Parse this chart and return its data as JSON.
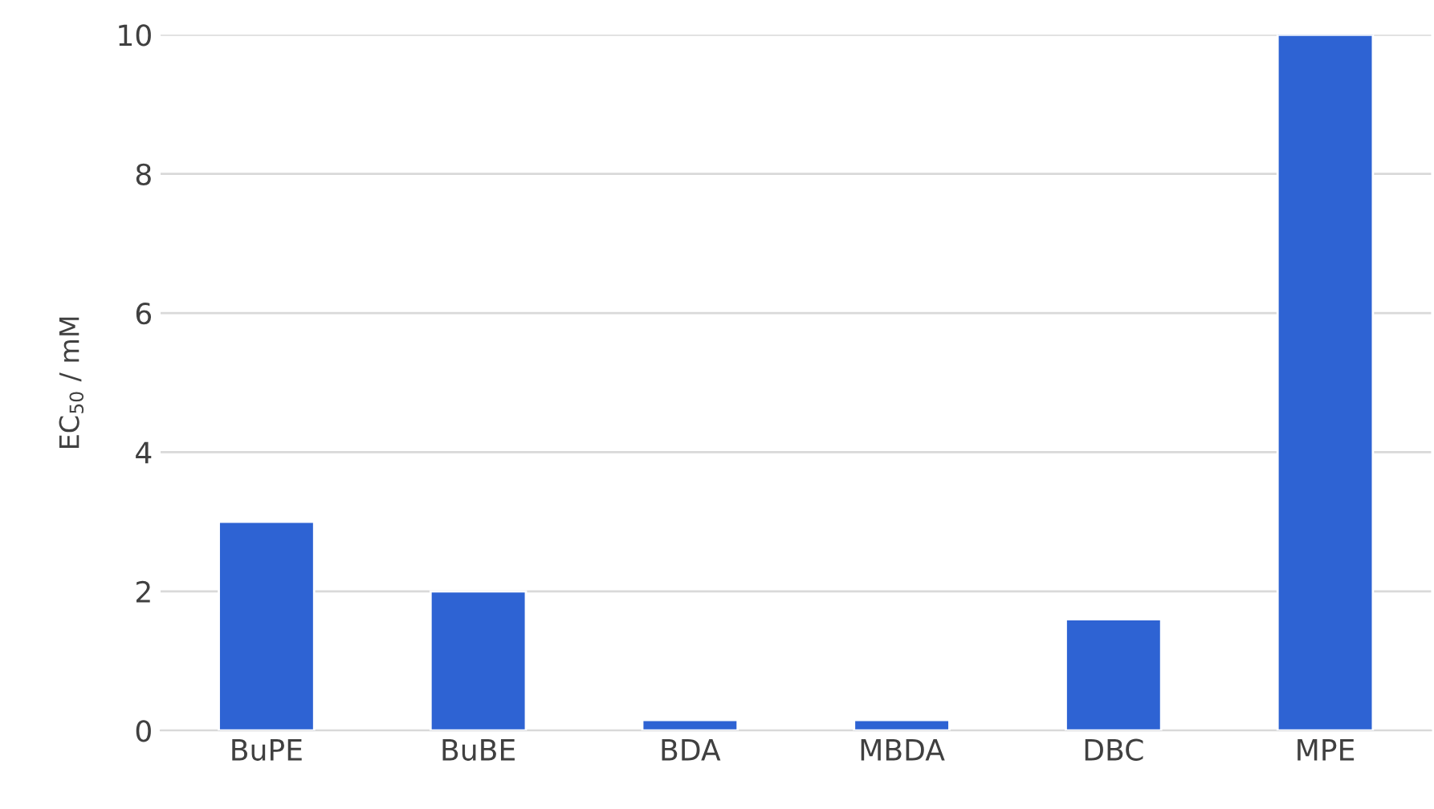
{
  "chart_data": {
    "type": "bar",
    "ylabel": "EC$_{50}$ / mM",
    "categories": [
      "BuPE",
      "BuBE",
      "BDA",
      "MBDA",
      "DBC",
      "MPE"
    ],
    "values": [
      3,
      2,
      0.15,
      0.15,
      1.6,
      10
    ],
    "color": "#2e63d3",
    "ylim": [
      0,
      10
    ],
    "yticks": [
      0,
      2,
      4,
      6,
      8,
      10
    ],
    "grid": "y"
  }
}
